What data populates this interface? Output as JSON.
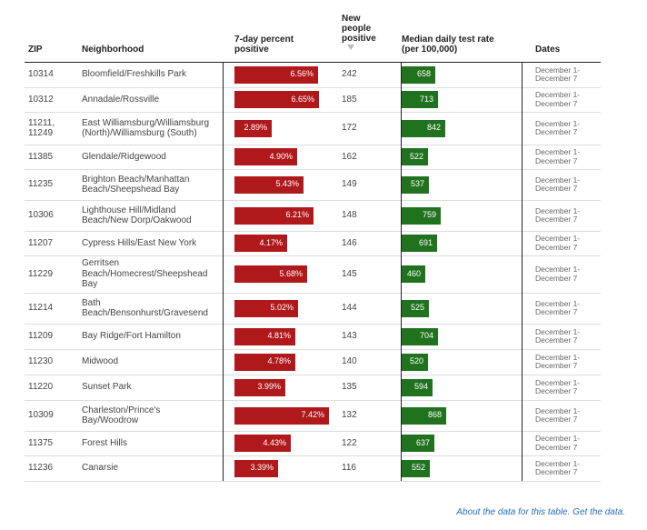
{
  "headers": {
    "zip": "ZIP",
    "neighborhood": "Neighborhood",
    "pct_line1": "7-day percent",
    "pct_line2": "positive",
    "new_line1": "New",
    "new_line2": "people",
    "new_line3": "positive",
    "rate_line1": "Median daily test rate",
    "rate_line2": "(per 100,000)",
    "dates": "Dates"
  },
  "scales": {
    "pct_max": 7.42,
    "rate_max": 868
  },
  "colors": {
    "pct_bar": "#b0191b",
    "rate_bar": "#21721e",
    "link": "#2a6ebb"
  },
  "rows": [
    {
      "zip": "10314",
      "neighborhood": "Bloomfield/Freshkills Park",
      "pct": 6.56,
      "pct_label": "6.56%",
      "new": "242",
      "rate": 658,
      "rate_label": "658",
      "dates": "December 1-\nDecember 7"
    },
    {
      "zip": "10312",
      "neighborhood": "Annadale/Rossville",
      "pct": 6.65,
      "pct_label": "6.65%",
      "new": "185",
      "rate": 713,
      "rate_label": "713",
      "dates": "December 1-\nDecember 7"
    },
    {
      "zip": "11211,\n11249",
      "neighborhood": "East Williamsburg/Williamsburg (North)/Williamsburg (South)",
      "pct": 2.89,
      "pct_label": "2.89%",
      "new": "172",
      "rate": 842,
      "rate_label": "842",
      "dates": "December 1-\nDecember 7"
    },
    {
      "zip": "11385",
      "neighborhood": "Glendale/Ridgewood",
      "pct": 4.9,
      "pct_label": "4.90%",
      "new": "162",
      "rate": 522,
      "rate_label": "522",
      "dates": "December 1-\nDecember 7"
    },
    {
      "zip": "11235",
      "neighborhood": "Brighton Beach/Manhattan Beach/Sheepshead Bay",
      "pct": 5.43,
      "pct_label": "5.43%",
      "new": "149",
      "rate": 537,
      "rate_label": "537",
      "dates": "December 1-\nDecember 7"
    },
    {
      "zip": "10306",
      "neighborhood": "Lighthouse Hill/Midland Beach/New Dorp/Oakwood",
      "pct": 6.21,
      "pct_label": "6.21%",
      "new": "148",
      "rate": 759,
      "rate_label": "759",
      "dates": "December 1-\nDecember 7"
    },
    {
      "zip": "11207",
      "neighborhood": "Cypress Hills/East New York",
      "pct": 4.17,
      "pct_label": "4.17%",
      "new": "146",
      "rate": 691,
      "rate_label": "691",
      "dates": "December 1-\nDecember 7"
    },
    {
      "zip": "11229",
      "neighborhood": "Gerritsen Beach/Homecrest/Sheepshead Bay",
      "pct": 5.68,
      "pct_label": "5.68%",
      "new": "145",
      "rate": 460,
      "rate_label": "460",
      "dates": "December 1-\nDecember 7"
    },
    {
      "zip": "11214",
      "neighborhood": "Bath Beach/Bensonhurst/Gravesend",
      "pct": 5.02,
      "pct_label": "5.02%",
      "new": "144",
      "rate": 525,
      "rate_label": "525",
      "dates": "December 1-\nDecember 7"
    },
    {
      "zip": "11209",
      "neighborhood": "Bay Ridge/Fort Hamilton",
      "pct": 4.81,
      "pct_label": "4.81%",
      "new": "143",
      "rate": 704,
      "rate_label": "704",
      "dates": "December 1-\nDecember 7"
    },
    {
      "zip": "11230",
      "neighborhood": "Midwood",
      "pct": 4.78,
      "pct_label": "4.78%",
      "new": "140",
      "rate": 520,
      "rate_label": "520",
      "dates": "December 1-\nDecember 7"
    },
    {
      "zip": "11220",
      "neighborhood": "Sunset Park",
      "pct": 3.99,
      "pct_label": "3.99%",
      "new": "135",
      "rate": 594,
      "rate_label": "594",
      "dates": "December 1-\nDecember 7"
    },
    {
      "zip": "10309",
      "neighborhood": "Charleston/Prince's Bay/Woodrow",
      "pct": 7.42,
      "pct_label": "7.42%",
      "new": "132",
      "rate": 868,
      "rate_label": "868",
      "dates": "December 1-\nDecember 7"
    },
    {
      "zip": "11375",
      "neighborhood": "Forest Hills",
      "pct": 4.43,
      "pct_label": "4.43%",
      "new": "122",
      "rate": 637,
      "rate_label": "637",
      "dates": "December 1-\nDecember 7"
    },
    {
      "zip": "11236",
      "neighborhood": "Canarsie",
      "pct": 3.39,
      "pct_label": "3.39%",
      "new": "116",
      "rate": 552,
      "rate_label": "552",
      "dates": "December 1-\nDecember 7"
    }
  ],
  "footer": {
    "about_link": "About the data for this table.",
    "get_link": "Get the data."
  }
}
